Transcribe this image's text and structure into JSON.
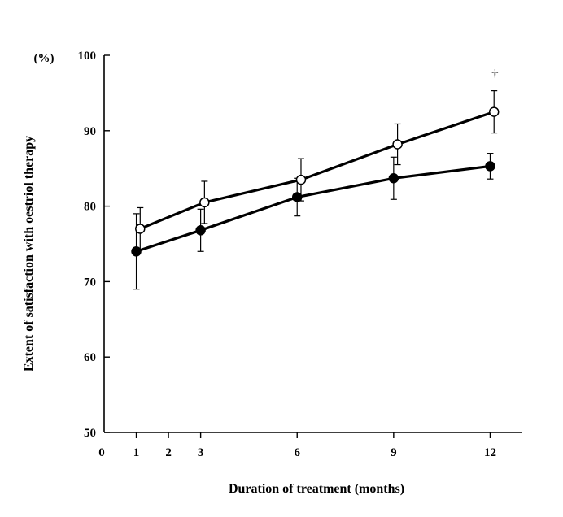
{
  "chart_data": {
    "type": "line",
    "title": "",
    "xlabel": "Duration of treatment (months)",
    "ylabel": "Extent of satisfaction with oestriol therapy",
    "y_unit": "(%)",
    "xlim": [
      0,
      13
    ],
    "ylim": [
      50,
      100
    ],
    "xticks": [
      0,
      1,
      2,
      3,
      6,
      9,
      12
    ],
    "yticks": [
      50,
      60,
      70,
      80,
      90,
      100
    ],
    "grid": false,
    "legend": "none",
    "series": [
      {
        "name": "open circles",
        "marker": "open-circle",
        "x": [
          1,
          3,
          6,
          9,
          12
        ],
        "values": [
          77,
          80.5,
          83.5,
          88.2,
          92.5
        ],
        "error_low": [
          2.8,
          2.8,
          2.8,
          2.7,
          2.8
        ],
        "error_high": [
          2.8,
          2.8,
          2.8,
          2.7,
          2.8
        ]
      },
      {
        "name": "filled circles",
        "marker": "filled-circle",
        "x": [
          1,
          3,
          6,
          9,
          12
        ],
        "values": [
          74,
          76.8,
          81.2,
          83.7,
          85.3
        ],
        "error_low": [
          5,
          2.8,
          2.5,
          2.8,
          1.7
        ],
        "error_high": [
          5,
          2.8,
          2.5,
          2.8,
          1.7
        ]
      }
    ],
    "annotations": [
      {
        "text": "†",
        "x": 12,
        "y": 97.5
      }
    ]
  }
}
